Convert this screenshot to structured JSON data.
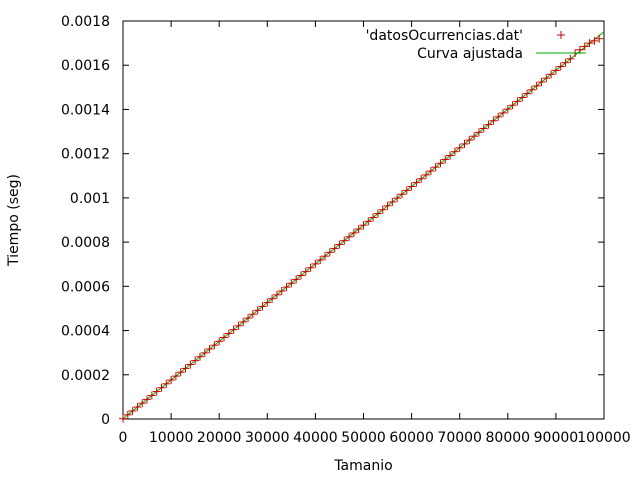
{
  "chart_data": {
    "type": "scatter",
    "title": "",
    "xlabel": "Tamanio",
    "ylabel": "Tiempo (seg)",
    "xlim": [
      0,
      100000
    ],
    "ylim": [
      0,
      0.0018
    ],
    "x_ticks": [
      "0",
      "10000",
      "20000",
      "30000",
      "40000",
      "50000",
      "60000",
      "70000",
      "80000",
      "90000",
      "100000"
    ],
    "y_ticks": [
      "0",
      "0.0002",
      "0.0004",
      "0.0006",
      "0.0008",
      "0.001",
      "0.0012",
      "0.0014",
      "0.0016",
      "0.0018"
    ],
    "grid": false,
    "legend_position": "top-right",
    "series": [
      {
        "name": "'datosOcurrencias.dat'",
        "style": "points",
        "marker": "plus",
        "color": "#cc0000",
        "x_range": [
          0,
          99000
        ],
        "x_step": 1000,
        "slope": 1.75e-08,
        "intercept": 1.5e-06,
        "note_points": [
          {
            "x": 94000,
            "y": 0.001655
          },
          {
            "x": 95000,
            "y": 0.00167
          },
          {
            "x": 96000,
            "y": 0.001685
          },
          {
            "x": 97000,
            "y": 0.0017
          },
          {
            "x": 98000,
            "y": 0.00171
          },
          {
            "x": 99000,
            "y": 0.00172
          }
        ]
      },
      {
        "name": "Curva ajustada",
        "style": "line",
        "color": "#00aa00",
        "x": [
          0,
          100000
        ],
        "y": [
          1.5e-06,
          0.0017515
        ]
      }
    ]
  }
}
